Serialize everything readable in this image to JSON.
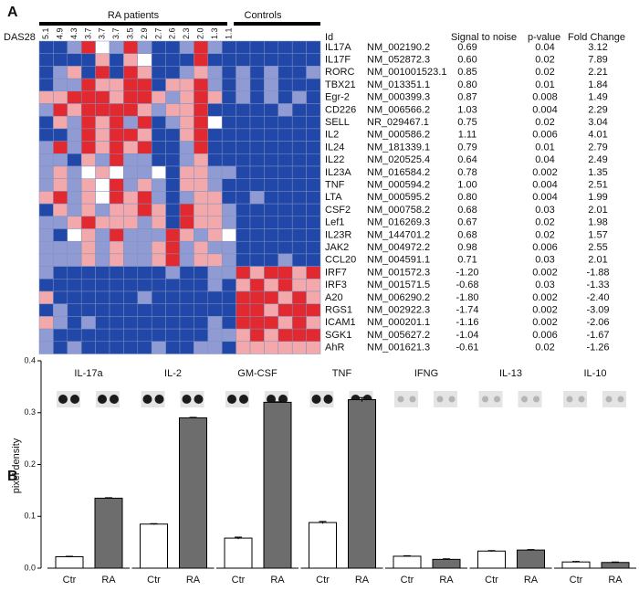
{
  "panel_a": {
    "label": "A",
    "group_labels": [
      "RA patients",
      "Controls"
    ],
    "das28_label": "DAS28",
    "das28": [
      "5.1",
      "4.9",
      "4.3",
      "3.7",
      "3.7",
      "3.7",
      "3.5",
      "2.9",
      "2.7",
      "2.6",
      "2.3",
      "2.0",
      "1.3",
      "1.1"
    ],
    "headers": [
      "Id",
      "Signal to noise",
      "p-value",
      "Fold Change"
    ],
    "rows": [
      [
        "IL17A",
        "NM_002190.2",
        "0.69",
        "0.04",
        "3.12"
      ],
      [
        "IL17F",
        "NM_052872.3",
        "0.60",
        "0.02",
        "7.89"
      ],
      [
        "RORC",
        "NM_001001523.1",
        "0.85",
        "0.02",
        "2.21"
      ],
      [
        "TBX21",
        "NM_013351.1",
        "0.80",
        "0.01",
        "1.84"
      ],
      [
        "Egr-2",
        "NM_000399.3",
        "0.87",
        "0.008",
        "1.49"
      ],
      [
        "CD226",
        "NM_006566.2",
        "1.03",
        "0.004",
        "2.29"
      ],
      [
        "SELL",
        "NR_029467.1",
        "0.75",
        "0.02",
        "3.04"
      ],
      [
        "IL2",
        "NM_000586.2",
        "1.11",
        "0.006",
        "4.01"
      ],
      [
        "IL24",
        "NM_181339.1",
        "0.79",
        "0.01",
        "2.79"
      ],
      [
        "IL22",
        "NM_020525.4",
        "0.64",
        "0.04",
        "2.49"
      ],
      [
        "IL23A",
        "NM_016584.2",
        "0.78",
        "0.002",
        "1.35"
      ],
      [
        "TNF",
        "NM_000594.2",
        "1.00",
        "0.004",
        "2.51"
      ],
      [
        "LTA",
        "NM_000595.2",
        "0.80",
        "0.004",
        "1.99"
      ],
      [
        "CSF2",
        "NM_000758.2",
        "0.68",
        "0.03",
        "2.01"
      ],
      [
        "Lef1",
        "NM_016269.3",
        "0.67",
        "0.02",
        "1.98"
      ],
      [
        "IL23R",
        "NM_144701.2",
        "0.68",
        "0.02",
        "1.57"
      ],
      [
        "JAK2",
        "NM_004972.2",
        "0.98",
        "0.006",
        "2.55"
      ],
      [
        "CCL20",
        "NM_004591.1",
        "0.71",
        "0.03",
        "2.01"
      ],
      [
        "IRF7",
        "NM_001572.3",
        "-1.20",
        "0.002",
        "-1.88"
      ],
      [
        "IRF3",
        "NM_001571.5",
        "-0.68",
        "0.03",
        "-1.33"
      ],
      [
        "A20",
        "NM_006290.2",
        "-1.80",
        "0.002",
        "-2.40"
      ],
      [
        "RGS1",
        "NM_002922.3",
        "-1.74",
        "0.002",
        "-3.09"
      ],
      [
        "ICAM1",
        "NM_000201.1",
        "-1.16",
        "0.002",
        "-2.06"
      ],
      [
        "SGK1",
        "NM_005627.2",
        "-1.04",
        "0.006",
        "-1.67"
      ],
      [
        "AhR",
        "NM_001621.3",
        "-0.61",
        "0.02",
        "-1.26"
      ]
    ],
    "color_levels": [
      -2,
      -1,
      0,
      1,
      2
    ],
    "colors": [
      "#2148a8",
      "#8f9bd2",
      "#ffffff",
      "#f3a9ab",
      "#e2292f"
    ],
    "heatmap": [
      [
        -2,
        -2,
        -1,
        2,
        0,
        -1,
        2,
        -1,
        -2,
        -2,
        -1,
        2,
        -1,
        -2,
        -2,
        -2,
        -2,
        -2,
        -2,
        -2
      ],
      [
        -2,
        -2,
        -2,
        -2,
        1,
        -2,
        1,
        0,
        -2,
        -2,
        -2,
        2,
        -2,
        -2,
        -2,
        -2,
        -2,
        -2,
        -2,
        -2
      ],
      [
        -2,
        -1,
        1,
        -2,
        2,
        -2,
        2,
        1,
        -2,
        -2,
        -1,
        1,
        -1,
        -2,
        -1,
        -2,
        -1,
        -2,
        -2,
        -1
      ],
      [
        -2,
        -1,
        -1,
        2,
        1,
        1,
        2,
        2,
        -2,
        1,
        1,
        2,
        -1,
        -2,
        -1,
        -2,
        -1,
        -2,
        -2,
        -2
      ],
      [
        1,
        1,
        2,
        2,
        2,
        1,
        2,
        2,
        1,
        -1,
        1,
        2,
        1,
        -2,
        -1,
        -2,
        -1,
        -2,
        -1,
        -2
      ],
      [
        -1,
        2,
        1,
        2,
        2,
        2,
        2,
        1,
        -1,
        1,
        1,
        2,
        -2,
        -2,
        -2,
        -2,
        -2,
        -1,
        -2,
        -2
      ],
      [
        -2,
        1,
        -1,
        2,
        1,
        2,
        -1,
        2,
        -2,
        -1,
        1,
        2,
        0,
        -2,
        -2,
        -2,
        -2,
        -2,
        -2,
        -2
      ],
      [
        -2,
        -2,
        -1,
        2,
        1,
        2,
        2,
        1,
        -2,
        -2,
        1,
        2,
        -2,
        -2,
        -2,
        -2,
        -2,
        -2,
        -2,
        -2
      ],
      [
        -1,
        2,
        -1,
        2,
        1,
        2,
        1,
        2,
        -2,
        -2,
        -1,
        2,
        -2,
        -2,
        -2,
        -2,
        -2,
        -2,
        -2,
        -2
      ],
      [
        -1,
        -1,
        -2,
        1,
        -1,
        2,
        -1,
        -1,
        -2,
        -2,
        -1,
        1,
        -2,
        -2,
        -2,
        -2,
        -2,
        -2,
        -2,
        -2
      ],
      [
        -1,
        1,
        -1,
        0,
        1,
        0,
        -1,
        -1,
        0,
        -2,
        1,
        1,
        -1,
        -1,
        -2,
        -2,
        -2,
        -2,
        -2,
        -2
      ],
      [
        -1,
        1,
        -1,
        1,
        0,
        2,
        -1,
        1,
        -1,
        -2,
        1,
        1,
        -1,
        -2,
        -2,
        -2,
        -2,
        -2,
        -2,
        -2
      ],
      [
        1,
        2,
        -1,
        1,
        0,
        2,
        1,
        2,
        -1,
        -2,
        -1,
        1,
        1,
        -2,
        -2,
        -1,
        -2,
        -2,
        -2,
        -2
      ],
      [
        -2,
        1,
        -1,
        1,
        -1,
        1,
        1,
        2,
        1,
        -2,
        2,
        1,
        1,
        -1,
        -2,
        -2,
        -2,
        -2,
        -2,
        -2
      ],
      [
        -1,
        -1,
        1,
        2,
        1,
        1,
        1,
        -1,
        1,
        -2,
        2,
        1,
        1,
        -1,
        -2,
        -2,
        -2,
        -2,
        -2,
        -2
      ],
      [
        -1,
        -2,
        0,
        1,
        -1,
        2,
        -1,
        -1,
        -1,
        2,
        1,
        -1,
        1,
        0,
        -2,
        -2,
        -2,
        -2,
        -2,
        -2
      ],
      [
        -1,
        -1,
        -1,
        1,
        -1,
        1,
        -1,
        -1,
        1,
        2,
        -1,
        1,
        -1,
        -1,
        -2,
        -2,
        -2,
        -2,
        -2,
        -2
      ],
      [
        -1,
        -1,
        -1,
        1,
        -1,
        1,
        -1,
        -1,
        1,
        2,
        -1,
        1,
        1,
        -1,
        -2,
        -2,
        -2,
        -1,
        -2,
        -2
      ],
      [
        -1,
        -2,
        -2,
        -2,
        -2,
        -2,
        -2,
        -2,
        -2,
        -1,
        -2,
        -2,
        -1,
        -1,
        2,
        1,
        2,
        2,
        1,
        2
      ],
      [
        -2,
        -2,
        -2,
        -2,
        -2,
        -2,
        -2,
        -2,
        -2,
        -2,
        -2,
        -2,
        -1,
        -2,
        1,
        2,
        1,
        2,
        1,
        1
      ],
      [
        1,
        -2,
        -2,
        -2,
        -2,
        -2,
        -2,
        -1,
        -2,
        -2,
        -2,
        -2,
        -2,
        -2,
        2,
        2,
        2,
        1,
        2,
        1
      ],
      [
        -2,
        -1,
        -2,
        -2,
        -2,
        -2,
        -2,
        -2,
        -2,
        -2,
        -2,
        -2,
        -2,
        -2,
        2,
        2,
        1,
        2,
        2,
        2
      ],
      [
        1,
        -1,
        -2,
        -1,
        -2,
        -2,
        -2,
        -2,
        -2,
        -2,
        -2,
        -2,
        -1,
        -2,
        2,
        2,
        2,
        1,
        2,
        1
      ],
      [
        -1,
        -2,
        -2,
        -2,
        -2,
        -2,
        -2,
        -2,
        -2,
        -2,
        -2,
        -2,
        -1,
        -1,
        1,
        2,
        1,
        2,
        2,
        2
      ],
      [
        -1,
        -2,
        -1,
        -2,
        -2,
        -2,
        -2,
        -2,
        -1,
        -2,
        -2,
        -1,
        -1,
        -2,
        1,
        1,
        1,
        1,
        1,
        1
      ]
    ]
  },
  "panel_b": {
    "label": "B",
    "type": "bar",
    "ylabel": "pixel density",
    "ylim": [
      0,
      0.4
    ],
    "yticks": [
      {
        "value": 0,
        "label": "0.0"
      },
      0.1,
      0.2,
      0.3,
      0.4
    ],
    "categories": [
      "Ctr",
      "RA"
    ],
    "colors": [
      "#ffffff",
      "#6d6d6d"
    ],
    "charts": [
      {
        "title": "IL-17a",
        "values": [
          0.022,
          0.135
        ],
        "errors": [
          0.001,
          0.001
        ]
      },
      {
        "title": "IL-2",
        "values": [
          0.085,
          0.29
        ],
        "errors": [
          0.001,
          0.001
        ]
      },
      {
        "title": "GM-CSF",
        "values": [
          0.058,
          0.32
        ],
        "errors": [
          0.002,
          0.001
        ]
      },
      {
        "title": "TNF",
        "values": [
          0.088,
          0.325
        ],
        "errors": [
          0.002,
          0.004
        ]
      },
      {
        "title": "IFNG",
        "values": [
          0.023,
          0.017
        ],
        "errors": [
          0.001,
          0.001
        ]
      },
      {
        "title": "IL-13",
        "values": [
          0.033,
          0.035
        ],
        "errors": [
          0.001,
          0.001
        ]
      },
      {
        "title": "IL-10",
        "values": [
          0.012,
          0.011
        ],
        "errors": [
          0.001,
          0.001
        ]
      }
    ]
  }
}
